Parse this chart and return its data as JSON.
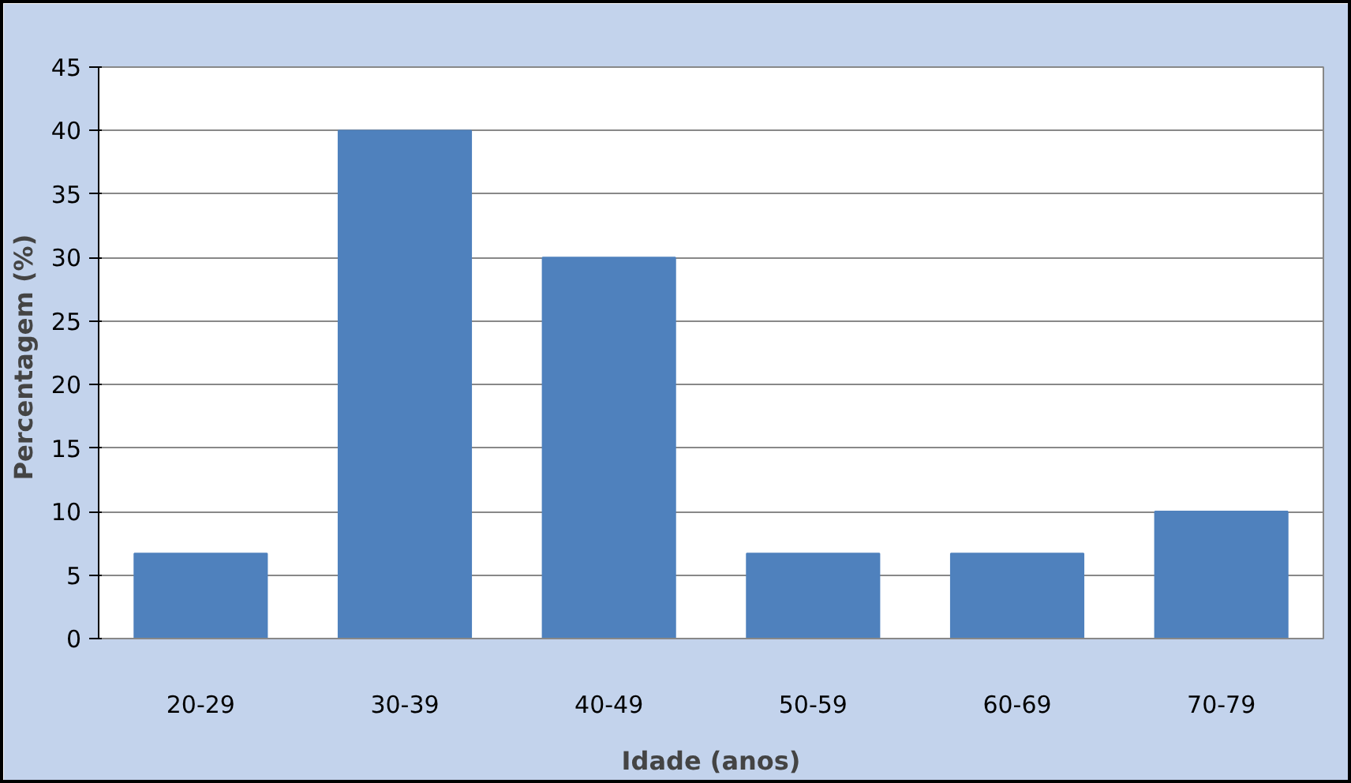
{
  "chart_data": {
    "type": "bar",
    "xlabel": "Idade (anos)",
    "ylabel": "Percentagem  (%)",
    "categories": [
      "20-29",
      "30-39",
      "40-49",
      "50-59",
      "60-69",
      "70-79"
    ],
    "values": [
      6.7,
      40,
      30,
      6.7,
      6.7,
      10
    ],
    "color": "#4f81bd",
    "ylim": [
      0,
      45
    ],
    "yticks": [
      0,
      5,
      10,
      15,
      20,
      25,
      30,
      35,
      40,
      45
    ],
    "grid": "y"
  }
}
